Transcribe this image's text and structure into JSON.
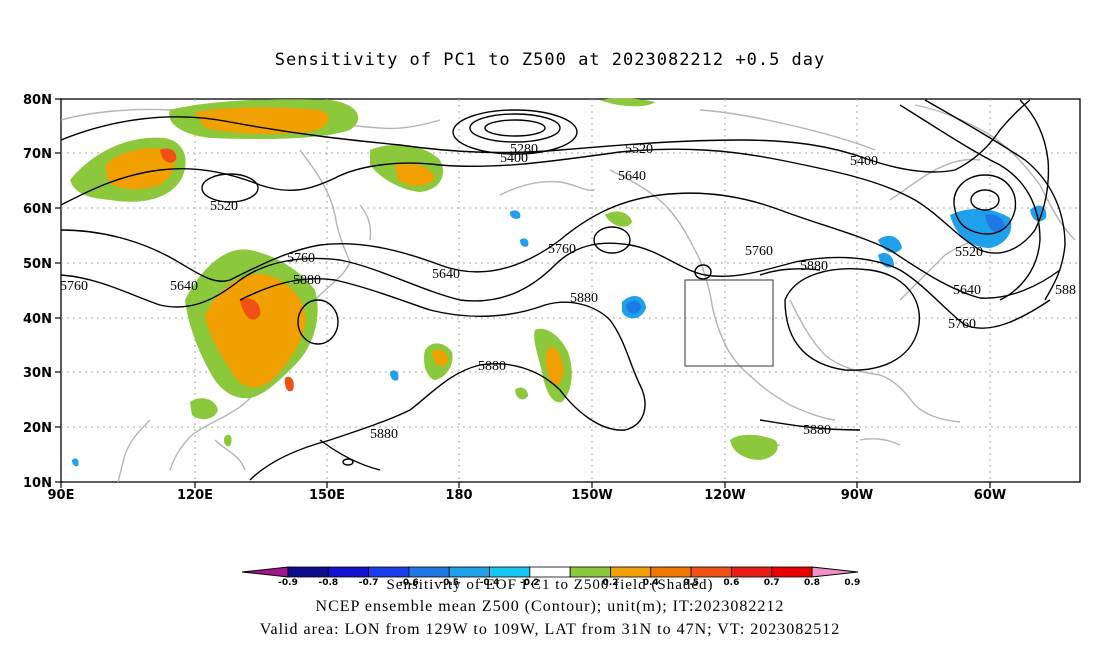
{
  "title": "Sensitivity of PC1 to Z500 at 2023082212 +0.5 day",
  "lat_labels": [
    "80N",
    "70N",
    "60N",
    "50N",
    "40N",
    "30N",
    "20N",
    "10N"
  ],
  "lon_labels": [
    "90E",
    "120E",
    "150E",
    "180",
    "150W",
    "120W",
    "90W",
    "60W"
  ],
  "contour_labels": [
    "5280",
    "5400",
    "5520",
    "5400",
    "5520",
    "5640",
    "5400",
    "5520",
    "5640",
    "5760",
    "5760",
    "5880",
    "5640",
    "5760",
    "5640",
    "5880",
    "5760",
    "5880",
    "5880",
    "5880",
    "5520",
    "5640",
    "5760",
    "588",
    "5880",
    "5880"
  ],
  "colorbar": {
    "tick_labels": [
      "-0.9",
      "-0.8",
      "-0.7",
      "-0.6",
      "-0.5",
      "-0.4",
      "-0.2",
      "0.2",
      "0.4",
      "0.5",
      "0.6",
      "0.7",
      "0.8",
      "0.9"
    ],
    "colors": [
      "#a0168c",
      "#0d0d8c",
      "#1212d0",
      "#1a3cf0",
      "#1e78e6",
      "#1ea0ea",
      "#14c8f0",
      "#ffffff",
      "#8cc83c",
      "#f0a000",
      "#f07800",
      "#f05014",
      "#e81e14",
      "#e80000",
      "#f090c8"
    ]
  },
  "captions": [
    "Sensitivity of EOF PC1 to Z500 field (Shaded)",
    "NCEP ensemble mean Z500 (Contour); unit(m); IT:2023082212",
    "Valid area: LON from 129W to 109W, LAT from 31N to 47N; VT: 2023082512"
  ]
}
